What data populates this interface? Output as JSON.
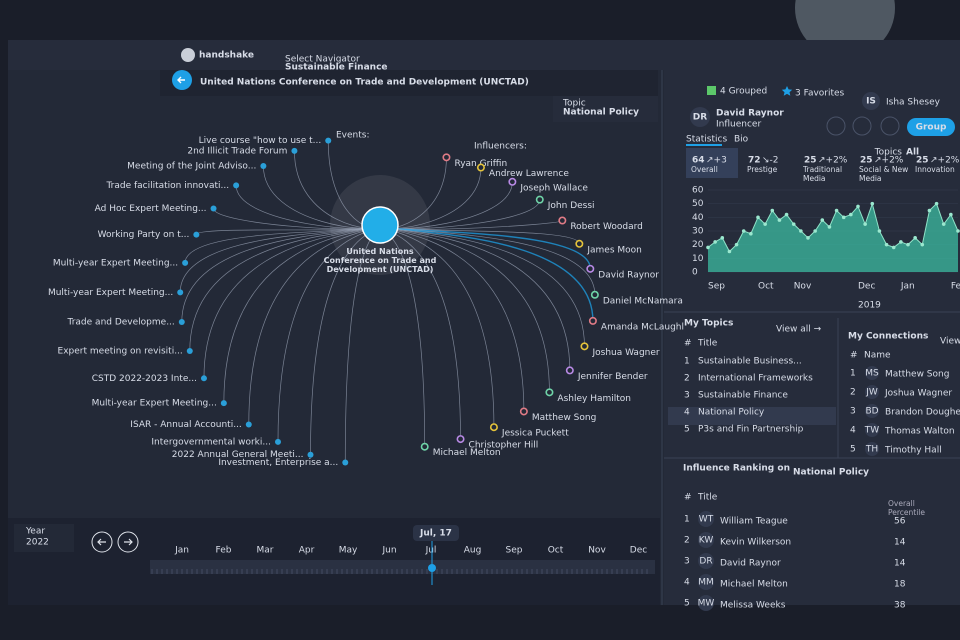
{
  "header": {
    "logo": "handshake",
    "navigator_label": "Select Navigator",
    "navigator_value": "Sustainable Finance",
    "title": "United Nations Conference on Trade and Development (UNCTAD)",
    "topic_label": "Topic",
    "topic_value": "National Policy",
    "grouped": "4 Grouped",
    "favorites": "3 Favorites",
    "user_initials": "IS",
    "user_name": "Isha Shesey"
  },
  "graph": {
    "events_label": "Events:",
    "influencers_label": "Influencers:",
    "center": "United Nations Conference on Trade and Development (UNCTAD)",
    "events": [
      "Live course \"how to use t...",
      "2nd Illicit Trade Forum",
      "Meeting of the Joint Adviso...",
      "Trade facilitation innovati...",
      "Ad Hoc Expert Meeting...",
      "Working Party on t...",
      "Multi-year Expert Meeting...",
      "Multi-year Expert Meeting...",
      "Trade and Developme...",
      "Expert meeting on revisiti...",
      "CSTD 2022-2023 Inte...",
      "Multi-year Expert Meeting...",
      "ISAR - Annual Accounti...",
      "Intergovernmental worki...",
      "2022 Annual General Meeti...",
      "Investment, Enterprise a..."
    ],
    "influencers": [
      "Ryan Griffin",
      "Andrew Lawrence",
      "Joseph Wallace",
      "John Dessi",
      "Robert Woodard",
      "James Moon",
      "David Raynor",
      "Daniel McNamara",
      "Amanda McLaughl",
      "Joshua Wagner",
      "Jennifer Bender",
      "Ashley Hamilton",
      "Matthew Song",
      "Jessica Puckett",
      "Christopher Hill",
      "Michael Melton"
    ]
  },
  "timeline": {
    "year_label": "Year",
    "year": "2022",
    "months": [
      "Jan",
      "Feb",
      "Mar",
      "Apr",
      "May",
      "Jun",
      "Jul",
      "Aug",
      "Sep",
      "Oct",
      "Nov",
      "Dec"
    ],
    "current": "Jul, 17"
  },
  "profile": {
    "initials": "DR",
    "name": "David Raynor",
    "role": "Influencer",
    "group_button": "Group",
    "tabs": [
      "Statistics",
      "Bio"
    ],
    "topics_label": "Topics",
    "topics_value": "All",
    "stats": [
      {
        "value": "64",
        "change": "↗+3",
        "label": "Overall"
      },
      {
        "value": "72",
        "change": "↘-2",
        "label": "Prestige"
      },
      {
        "value": "25",
        "change": "↗+2%",
        "label": "Traditional Media"
      },
      {
        "value": "25",
        "change": "↗+2%",
        "label": "Social & New Media"
      },
      {
        "value": "25",
        "change": "↗+2%",
        "label": "Innovation"
      }
    ]
  },
  "chart_data": {
    "type": "area",
    "color": "#3bb39b",
    "categories": [
      "Sep",
      null,
      null,
      null,
      null,
      null,
      null,
      "Oct",
      null,
      null,
      null,
      null,
      "Nov",
      null,
      null,
      null,
      null,
      null,
      null,
      null,
      null,
      "Dec",
      null,
      null,
      null,
      null,
      null,
      "Jan",
      null,
      null,
      null,
      null,
      null,
      null,
      "Feb",
      null
    ],
    "values": [
      18,
      22,
      25,
      15,
      20,
      30,
      28,
      40,
      35,
      45,
      38,
      42,
      35,
      30,
      25,
      30,
      38,
      33,
      45,
      40,
      42,
      48,
      35,
      50,
      30,
      20,
      18,
      22,
      20,
      25,
      20,
      45,
      50,
      35,
      42,
      30
    ],
    "x_note": "2019",
    "ylim": [
      0,
      60
    ],
    "yticks": [
      0,
      10,
      20,
      30,
      40,
      50,
      60
    ]
  },
  "my_topics": {
    "title": "My Topics",
    "view_all": "View all →",
    "columns": [
      "#",
      "Title"
    ],
    "rows": [
      [
        "1",
        "Sustainable Business..."
      ],
      [
        "2",
        "International Frameworks"
      ],
      [
        "3",
        "Sustainable Finance"
      ],
      [
        "4",
        "National Policy"
      ],
      [
        "5",
        "P3s and Fin Partnership"
      ]
    ]
  },
  "my_connections": {
    "title": "My Connections",
    "view_all": "View",
    "columns": [
      "#",
      "Name"
    ],
    "rows": [
      [
        "1",
        "MS",
        "Matthew Song"
      ],
      [
        "2",
        "JW",
        "Joshua Wagner"
      ],
      [
        "3",
        "BD",
        "Brandon Doughe"
      ],
      [
        "4",
        "TW",
        "Thomas Walton"
      ],
      [
        "5",
        "TH",
        "Timothy Hall"
      ]
    ]
  },
  "ranking": {
    "title": "Influence Ranking on",
    "topic": "National Policy",
    "columns": [
      "#",
      "Title",
      "Overall Percentile"
    ],
    "rows": [
      [
        "1",
        "WT",
        "William Teague",
        "56"
      ],
      [
        "2",
        "KW",
        "Kevin Wilkerson",
        "14"
      ],
      [
        "3",
        "DR",
        "David Raynor",
        "14"
      ],
      [
        "4",
        "MM",
        "Michael Melton",
        "18"
      ],
      [
        "5",
        "MW",
        "Melissa Weeks",
        "38"
      ]
    ]
  }
}
